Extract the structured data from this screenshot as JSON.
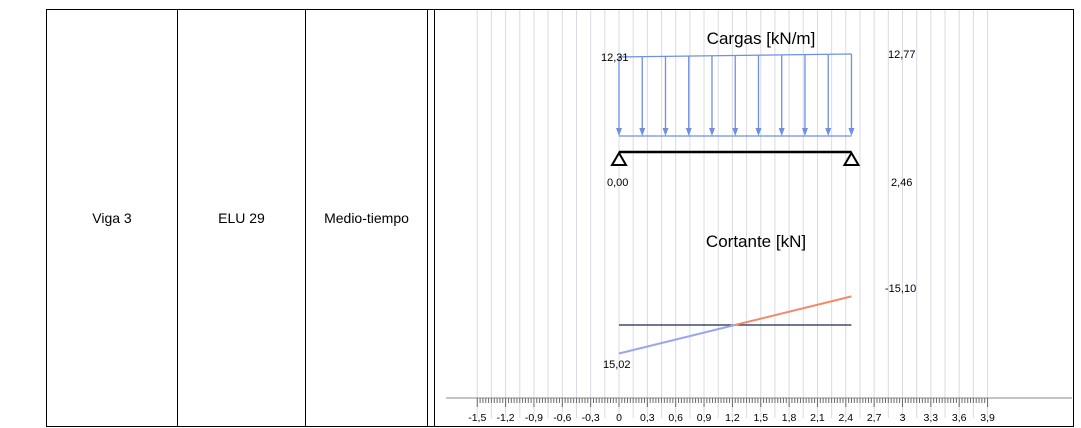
{
  "table": {
    "element": "Viga 3",
    "combination": "ELU 29",
    "position": "Medio-tiempo"
  },
  "diagram": {
    "loads_title": "Cargas [kN/m]",
    "load_left_label": "12,31",
    "load_right_label": "12,77",
    "load_left": 12.31,
    "load_right": 12.77,
    "beam_start_label": "0,00",
    "beam_end_label": "2,46",
    "beam_start": 0.0,
    "beam_end": 2.46,
    "shear_title": "Cortante [kN]",
    "shear_left_label": "15,02",
    "shear_right_label": "-15,10",
    "shear_left": 15.02,
    "shear_right": -15.1,
    "colors": {
      "load_arrows": "#6f8fe0",
      "shear_positive": "#9aa6f0",
      "shear_negative": "#f08a6a",
      "beam": "#000000",
      "grid": "#d9dbe3"
    }
  },
  "axis": {
    "ticks": [
      "-1,5",
      "-1,2",
      "-0,9",
      "-0,6",
      "-0,3",
      "0",
      "0,3",
      "0,6",
      "0,9",
      "1,2",
      "1,5",
      "1,8",
      "2,1",
      "2,4",
      "2,7",
      "3",
      "3,3",
      "3,6",
      "3,9"
    ],
    "tick_values": [
      -1.5,
      -1.2,
      -0.9,
      -0.6,
      -0.3,
      0,
      0.3,
      0.6,
      0.9,
      1.2,
      1.5,
      1.8,
      2.1,
      2.4,
      2.7,
      3.0,
      3.3,
      3.6,
      3.9
    ],
    "min": -1.5,
    "max": 3.9
  }
}
